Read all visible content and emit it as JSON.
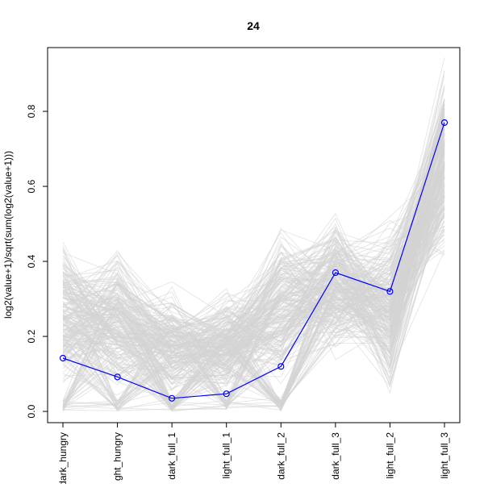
{
  "chart_data": {
    "type": "line",
    "title": "24",
    "xlabel": "",
    "ylabel": "log2(value+1)/sqrt(sum(log2(value+1)))",
    "categories": [
      "dark_hungry",
      "light_hungry",
      "dark_full_1",
      "light_full_1",
      "dark_full_2",
      "dark_full_3",
      "light_full_2",
      "light_full_3"
    ],
    "tick_labels_display": [
      "dark_hungry",
      "ght_hungry",
      "dark_full_1",
      "light_full_1",
      "dark_full_2",
      "dark_full_3",
      "light_full_2",
      "light_full_3"
    ],
    "ylim": [
      -0.03,
      0.97
    ],
    "yticks": [
      0.0,
      0.2,
      0.4,
      0.6,
      0.8
    ],
    "yticklabels": [
      "0.0",
      "0.2",
      "0.4",
      "0.6",
      "0.8"
    ],
    "grid": false,
    "legend": "none",
    "background_series_color": "#d3d3d3",
    "background_series_count": 250,
    "background_band": {
      "low": [
        0.0,
        0.0,
        0.0,
        0.0,
        0.0,
        0.12,
        0.0,
        0.37
      ],
      "high": [
        0.52,
        0.48,
        0.36,
        0.36,
        0.54,
        0.57,
        0.57,
        0.96
      ]
    },
    "highlight": {
      "color": "#0000ff",
      "values": [
        0.142,
        0.092,
        0.035,
        0.047,
        0.12,
        0.37,
        0.32,
        0.77
      ]
    }
  }
}
